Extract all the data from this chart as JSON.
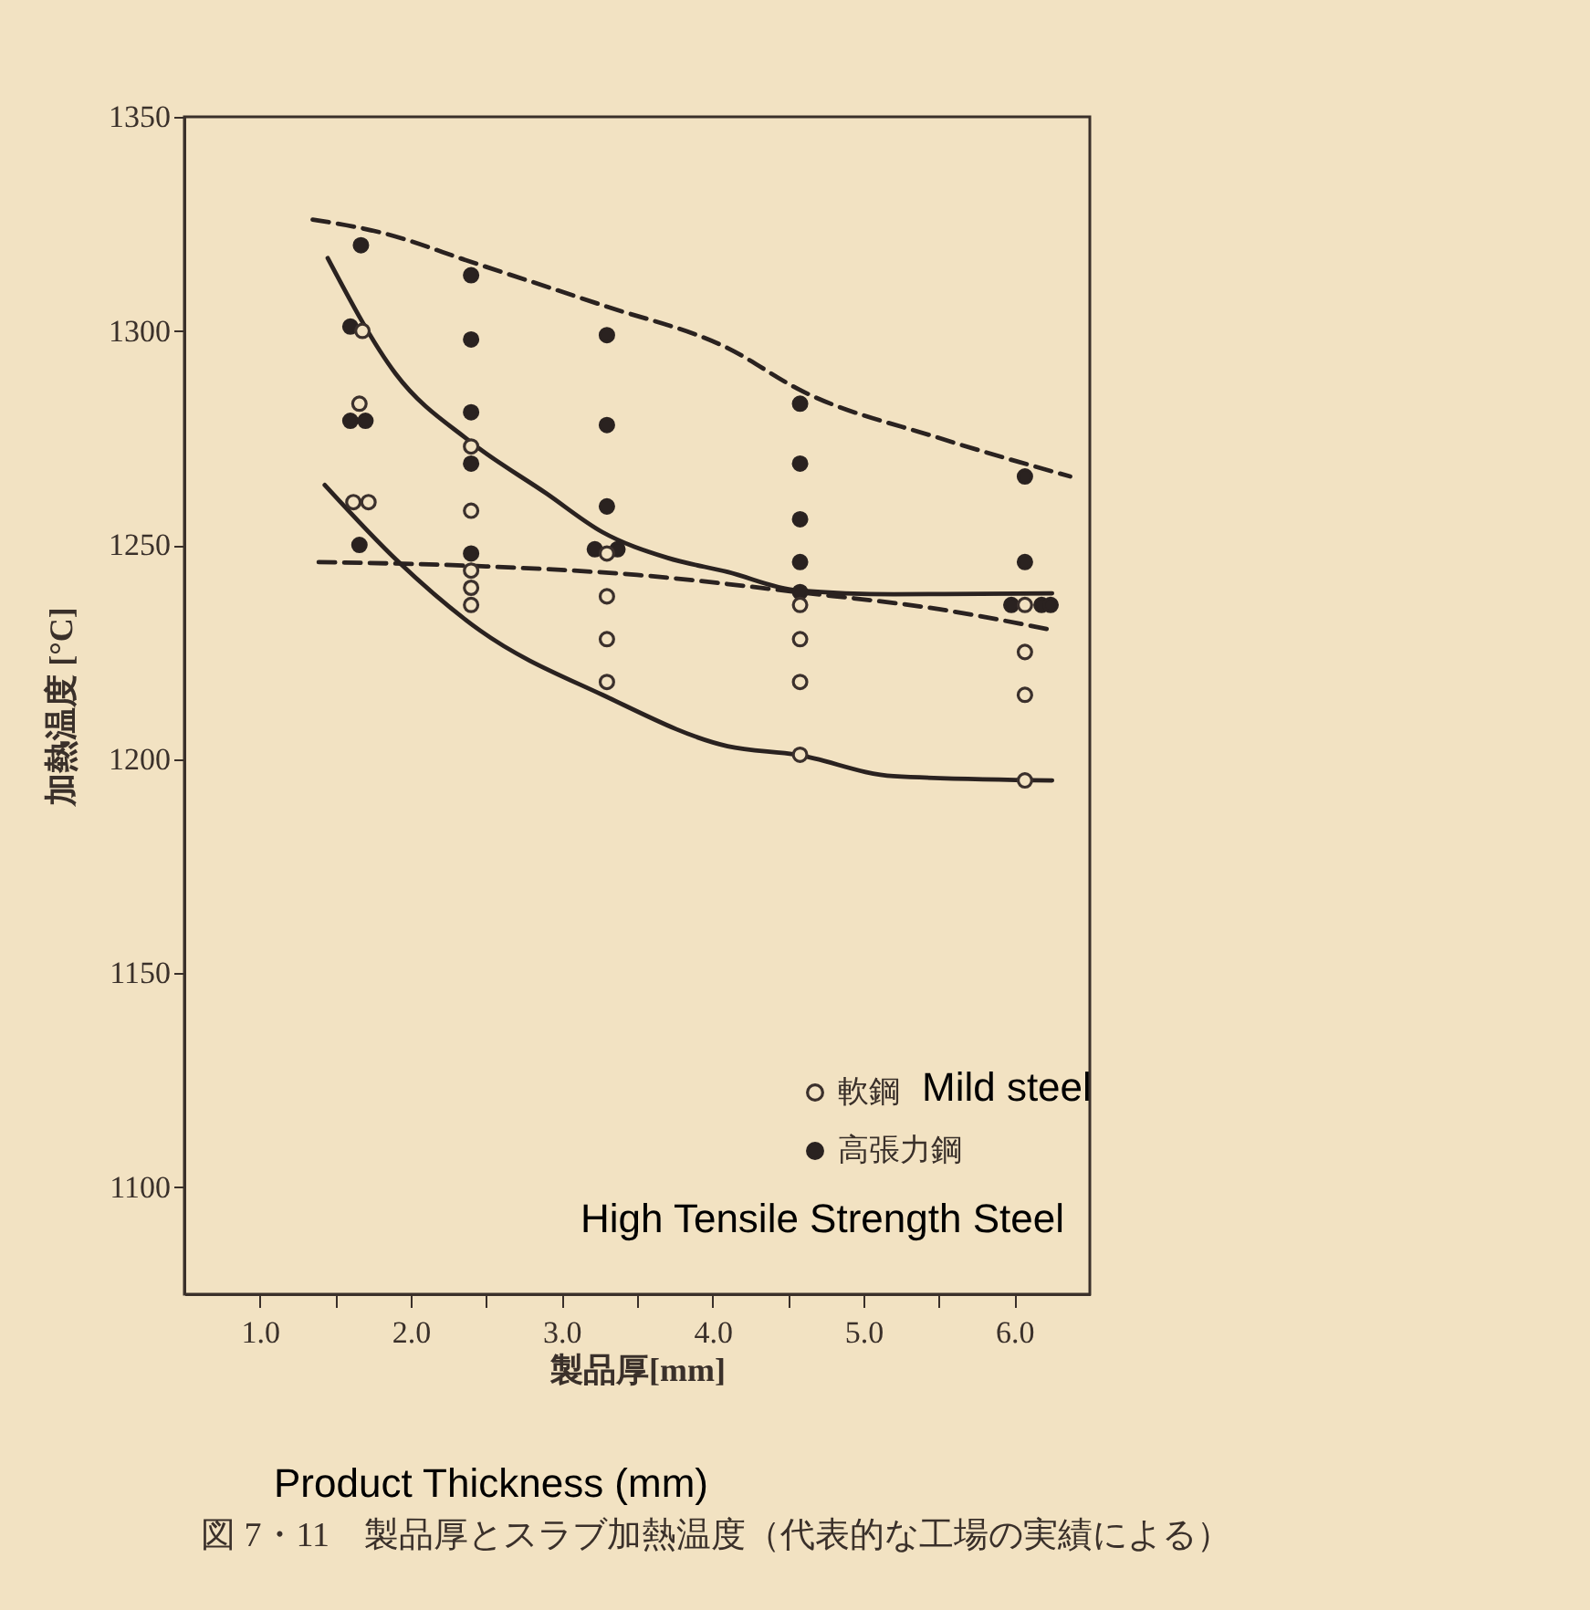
{
  "chart_data": {
    "type": "scatter",
    "title": "図 7・11　製品厚とスラブ加熱温度（代表的な工場の実績による）",
    "xlabel": "製品厚[mm]",
    "ylabel": "加熱温度 [°C]",
    "annotations": [
      "Mild steel",
      "High Tensile Strength Steel",
      "Product Thickness (mm)"
    ],
    "xlim": [
      0.5,
      6.5
    ],
    "ylim": [
      1075,
      1350
    ],
    "xticks": [
      {
        "value": 1,
        "label": "1.0"
      },
      {
        "value": 1.5,
        "label": null
      },
      {
        "value": 2,
        "label": "2.0"
      },
      {
        "value": 2.5,
        "label": null
      },
      {
        "value": 3,
        "label": "3.0"
      },
      {
        "value": 3.5,
        "label": null
      },
      {
        "value": 4,
        "label": "4.0"
      },
      {
        "value": 4.5,
        "label": null
      },
      {
        "value": 5,
        "label": "5.0"
      },
      {
        "value": 5.5,
        "label": null
      },
      {
        "value": 6,
        "label": "6.0"
      }
    ],
    "yticks": [
      1100,
      1150,
      1200,
      1250,
      1300,
      1350
    ],
    "grid": false,
    "legend": "bottom right",
    "series": [
      {
        "name": "軟鋼",
        "color": "#3b302c",
        "marker": "circle",
        "x": [
          1.68,
          1.66,
          1.62,
          1.72,
          2.4,
          2.4,
          2.4,
          2.4,
          2.4,
          3.3,
          3.3,
          3.3,
          3.3,
          4.58,
          4.58,
          4.58,
          4.58,
          6.07,
          6.07,
          6.07,
          6.07
        ],
        "values": [
          1300,
          1283,
          1260,
          1260,
          1273,
          1258,
          1244,
          1240,
          1236,
          1248,
          1238,
          1228,
          1218,
          1236,
          1228,
          1218,
          1201,
          1236,
          1225,
          1215,
          1195
        ]
      },
      {
        "name": "高張力鋼",
        "color": "#2a2220",
        "marker": "circle",
        "x": [
          1.67,
          1.6,
          1.6,
          1.7,
          1.66,
          2.4,
          2.4,
          2.4,
          2.4,
          2.4,
          3.3,
          3.3,
          3.3,
          3.22,
          3.37,
          4.58,
          4.58,
          4.58,
          4.58,
          4.58,
          6.07,
          6.07,
          5.98,
          6.18,
          6.24
        ],
        "values": [
          1320,
          1301,
          1279,
          1279,
          1250,
          1313,
          1298,
          1281,
          1269,
          1248,
          1299,
          1278,
          1259,
          1249,
          1249,
          1283,
          1269,
          1256,
          1246,
          1239,
          1266,
          1246,
          1236,
          1236,
          1236
        ]
      },
      {
        "type": "line",
        "color": "#2a2220",
        "line_style": "solid",
        "x": [
          1.45,
          1.9,
          2.4,
          2.9,
          3.27,
          3.7,
          4.1,
          4.56,
          5.2,
          6.25
        ],
        "values": [
          1317,
          1290,
          1274,
          1262,
          1253,
          1247,
          1243.7,
          1239.4,
          1238.5,
          1238.7
        ]
      },
      {
        "type": "line",
        "color": "#2a2220",
        "line_style": "solid",
        "x": [
          1.43,
          1.92,
          2.46,
          3.27,
          4.1,
          4.56,
          5.2,
          6.25
        ],
        "values": [
          1264,
          1246,
          1230,
          1215,
          1203,
          1201,
          1196,
          1195
        ]
      },
      {
        "type": "line",
        "color": "#2a2220",
        "line_style": "dashed",
        "x": [
          1.35,
          1.8,
          2.41,
          3.27,
          4.1,
          4.59,
          5.5,
          6.37
        ],
        "values": [
          1326,
          1323,
          1316,
          1306,
          1296,
          1286,
          1275,
          1266
        ]
      },
      {
        "type": "line",
        "color": "#2a2220",
        "line_style": "dashed",
        "x": [
          1.39,
          2.5,
          3.5,
          4.56,
          5.5,
          6.27
        ],
        "values": [
          1246,
          1245,
          1243,
          1239,
          1235,
          1230
        ]
      }
    ]
  }
}
